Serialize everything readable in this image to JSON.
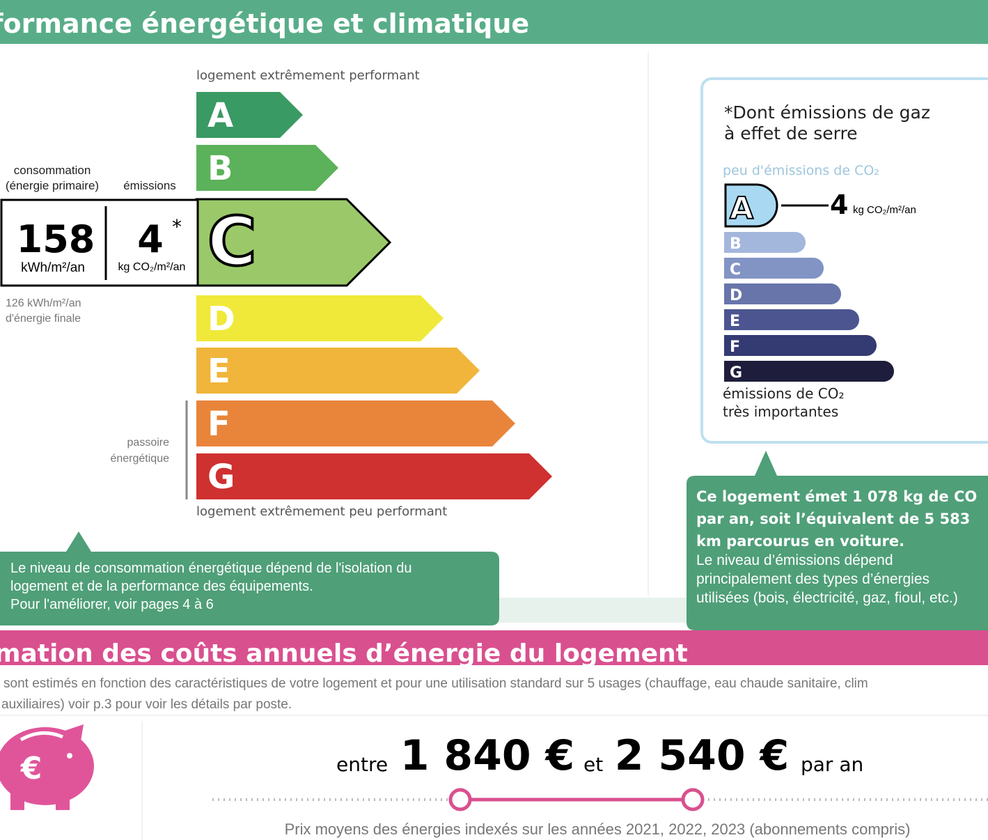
{
  "header": {
    "title": "formance énergétique et climatique"
  },
  "energy": {
    "top_label": "logement extrêmement performant",
    "bottom_label": "logement extrêmement peu performant",
    "classes": [
      "A",
      "B",
      "C",
      "D",
      "E",
      "F",
      "G"
    ],
    "consumption_label": "consommation",
    "consumption_sublabel": "(énergie primaire)",
    "emissions_label": "émissions",
    "consumption_value": "158",
    "consumption_unit": "kWh/m²/an",
    "emissions_value": "4",
    "emissions_star": "*",
    "emissions_unit": "kg CO₂/m²/an",
    "final_lines": [
      "126 kWh/m²/an",
      "d'énergie finale"
    ],
    "passoire_lines": [
      "passoire",
      "énergétique"
    ]
  },
  "energy_note": {
    "lines": [
      "Le niveau de consommation énergétique dépend de l'isolation du",
      "logement et de la performance des équipements.",
      "Pour l'améliorer, voir pages 4 à 6"
    ]
  },
  "ges": {
    "title_lines": [
      "*Dont émissions de gaz",
      "à effet de serre"
    ],
    "top_label": "peu d'émissions de CO₂",
    "classes": [
      "A",
      "B",
      "C",
      "D",
      "E",
      "F",
      "G"
    ],
    "value": "4",
    "unit": "kg CO₂/m²/an",
    "bottom_lines": [
      "émissions de CO₂",
      "très importantes"
    ]
  },
  "ges_note": {
    "bold_lines": [
      "Ce logement émet 1 078 kg de CO",
      "par an, soit l’équivalent de 5 583",
      "km parcourus en voiture."
    ],
    "lines": [
      "Le niveau d’émissions dépend",
      "principalement des types d’énergies",
      "utilisées (bois, électricité, gaz, fioul, etc.)"
    ]
  },
  "costs": {
    "title": "mation des coûts annuels d’énergie du logement",
    "description_lines": [
      "sont estimés en fonction des caractéristiques de votre logement et pour une utilisation standard sur 5 usages (chauffage, eau chaude sanitaire, clim",
      "auxiliaires) voir p.3 pour voir les détails par poste."
    ],
    "between": "entre",
    "min": "1 840 €",
    "and": "et",
    "max": "2 540 €",
    "per_year": "par an",
    "footnote": "Prix moyens des énergies indexés sur les années 2021, 2022, 2023 (abonnements compris)"
  }
}
